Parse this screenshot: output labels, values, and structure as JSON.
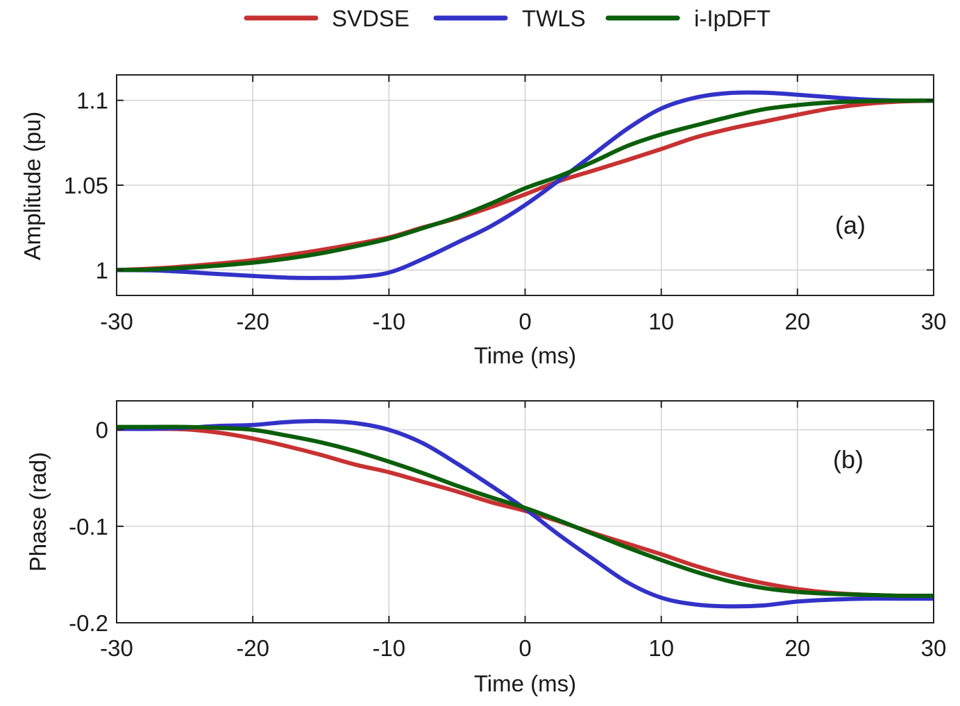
{
  "legend": {
    "entries": [
      {
        "label": "SVDSE",
        "color": "#c83232"
      },
      {
        "label": "TWLS",
        "color": "#3232c8"
      },
      {
        "label": "i-IpDFT",
        "color": "#0a5f0a"
      }
    ]
  },
  "chart_data": [
    {
      "type": "line",
      "panel": "top",
      "annotation": "(a)",
      "xlabel": "Time (ms)",
      "ylabel": "Amplitude (pu)",
      "xlim": [
        -30,
        30
      ],
      "ylim": [
        0.985,
        1.115
      ],
      "xticks": [
        -30,
        -20,
        -10,
        0,
        10,
        20,
        30
      ],
      "xtick_labels": [
        "-30",
        "-20",
        "-10",
        "0",
        "10",
        "20",
        "30"
      ],
      "yticks": [
        1.0,
        1.05,
        1.1
      ],
      "ytick_labels": [
        "1",
        "1.05",
        "1.1"
      ],
      "grid": true,
      "x": [
        -30,
        -27.5,
        -25,
        -22.5,
        -20,
        -17.5,
        -15,
        -12.5,
        -10,
        -7.5,
        -5,
        -2.5,
        0,
        2.5,
        5,
        7.5,
        10,
        12.5,
        15,
        17.5,
        20,
        22.5,
        25,
        27.5,
        30
      ],
      "series": [
        {
          "name": "SVDSE",
          "color": "#c83232",
          "values": [
            1.0,
            1.0008,
            1.0021,
            1.0038,
            1.0058,
            1.0087,
            1.0118,
            1.0153,
            1.0192,
            1.0251,
            1.0305,
            1.0371,
            1.0446,
            1.0524,
            1.0586,
            1.0648,
            1.0713,
            1.0781,
            1.0832,
            1.0874,
            1.0915,
            1.0953,
            1.0979,
            1.0993,
            1.0998
          ]
        },
        {
          "name": "TWLS",
          "color": "#3232c8",
          "values": [
            1.0,
            0.9998,
            0.9989,
            0.9976,
            0.9965,
            0.9955,
            0.9953,
            0.9958,
            0.9985,
            1.0065,
            1.0161,
            1.0259,
            1.0383,
            1.0529,
            1.0681,
            1.0832,
            1.0952,
            1.1016,
            1.1043,
            1.1045,
            1.1033,
            1.1018,
            1.1005,
            1.0999,
            1.0998
          ]
        },
        {
          "name": "i-IpDFT",
          "color": "#0a5f0a",
          "values": [
            1.0,
            1.0003,
            1.0013,
            1.0026,
            1.0043,
            1.0067,
            1.0098,
            1.0139,
            1.0185,
            1.0247,
            1.0312,
            1.0392,
            1.0482,
            1.0553,
            1.0638,
            1.0731,
            1.0799,
            1.0852,
            1.0903,
            1.0947,
            1.0972,
            1.0988,
            1.0995,
            1.0998,
            1.0998
          ]
        }
      ]
    },
    {
      "type": "line",
      "panel": "bottom",
      "annotation": "(b)",
      "xlabel": "Time (ms)",
      "ylabel": "Phase (rad)",
      "xlim": [
        -30,
        30
      ],
      "ylim": [
        -0.2,
        0.03
      ],
      "xticks": [
        -30,
        -20,
        -10,
        0,
        10,
        20,
        30
      ],
      "xtick_labels": [
        "-30",
        "-20",
        "-10",
        "0",
        "10",
        "20",
        "30"
      ],
      "yticks": [
        0,
        -0.1,
        -0.2
      ],
      "ytick_labels": [
        "0",
        "-0.1",
        "-0.2"
      ],
      "grid": true,
      "x": [
        -30,
        -27.5,
        -25,
        -22.5,
        -20,
        -17.5,
        -15,
        -12.5,
        -10,
        -7.5,
        -5,
        -2.5,
        0,
        2.5,
        5,
        7.5,
        10,
        12.5,
        15,
        17.5,
        20,
        22.5,
        25,
        27.5,
        30
      ],
      "series": [
        {
          "name": "SVDSE",
          "color": "#c83232",
          "values": [
            0.001,
            0.001,
            0.0005,
            -0.003,
            -0.009,
            -0.017,
            -0.026,
            -0.036,
            -0.044,
            -0.054,
            -0.064,
            -0.075,
            -0.084,
            -0.095,
            -0.107,
            -0.118,
            -0.129,
            -0.141,
            -0.151,
            -0.159,
            -0.165,
            -0.169,
            -0.171,
            -0.172,
            -0.172
          ]
        },
        {
          "name": "TWLS",
          "color": "#3232c8",
          "values": [
            0.001,
            0.001,
            0.002,
            0.004,
            0.005,
            0.008,
            0.009,
            0.007,
            0.0,
            -0.014,
            -0.035,
            -0.058,
            -0.082,
            -0.109,
            -0.134,
            -0.158,
            -0.174,
            -0.181,
            -0.183,
            -0.182,
            -0.178,
            -0.176,
            -0.175,
            -0.175,
            -0.175
          ]
        },
        {
          "name": "i-IpDFT",
          "color": "#0a5f0a",
          "values": [
            0.003,
            0.003,
            0.003,
            0.002,
            0.0,
            -0.006,
            -0.013,
            -0.022,
            -0.033,
            -0.045,
            -0.058,
            -0.07,
            -0.081,
            -0.094,
            -0.108,
            -0.122,
            -0.135,
            -0.147,
            -0.157,
            -0.164,
            -0.168,
            -0.17,
            -0.171,
            -0.172,
            -0.172
          ]
        }
      ]
    }
  ]
}
